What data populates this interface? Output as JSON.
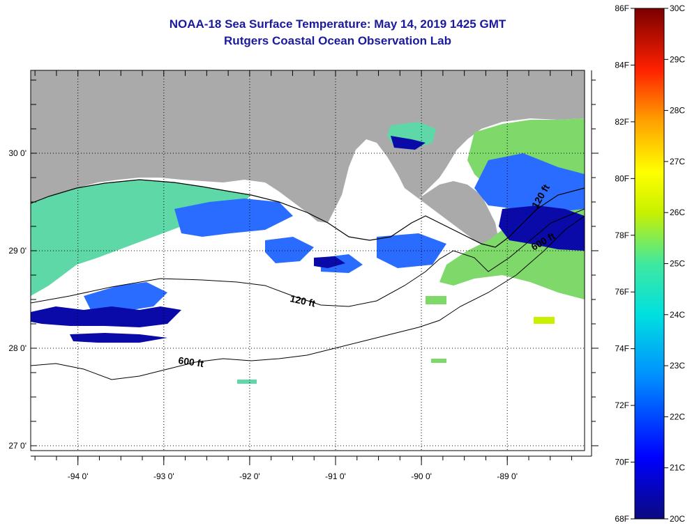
{
  "title": {
    "line1": "NOAA-18 Sea Surface Temperature:  May 14, 2019 1425 GMT",
    "line2": "Rutgers Coastal Ocean Observation Lab"
  },
  "map": {
    "lat_labels": [
      "30 0'",
      "29 0'",
      "28 0'",
      "27 0'"
    ],
    "lat_values": [
      30,
      29,
      28,
      27
    ],
    "lon_labels": [
      "-94 0'",
      "-93 0'",
      "-92 0'",
      "-91 0'",
      "-90 0'",
      "-89 0'"
    ],
    "lon_values": [
      -94,
      -93,
      -92,
      -91,
      -90,
      -89
    ],
    "lon_range": [
      -94.55,
      -88.1
    ],
    "lat_range": [
      26.95,
      30.85
    ],
    "contours": [
      {
        "label": "120 ft"
      },
      {
        "label": "600 ft"
      },
      {
        "label": "120 ft"
      },
      {
        "label": "600 ft"
      }
    ],
    "colors": {
      "land": "#aaaaaa",
      "cloud": "#ffffff",
      "warm": "#7fd86a",
      "mid": "#3fe0c0",
      "cool": "#2070ff",
      "cold": "#0a0aa0"
    }
  },
  "colorbar": {
    "f_labels": [
      "86F",
      "84F",
      "82F",
      "80F",
      "78F",
      "76F",
      "74F",
      "72F",
      "70F",
      "68F"
    ],
    "f_values": [
      86,
      84,
      82,
      80,
      78,
      76,
      74,
      72,
      70,
      68
    ],
    "c_labels": [
      "30C",
      "29C",
      "28C",
      "27C",
      "26C",
      "25C",
      "24C",
      "23C",
      "22C",
      "21C",
      "20C"
    ],
    "c_values": [
      30,
      29,
      28,
      27,
      26,
      25,
      24,
      23,
      22,
      21,
      20
    ],
    "range_c": [
      20,
      30
    ]
  }
}
